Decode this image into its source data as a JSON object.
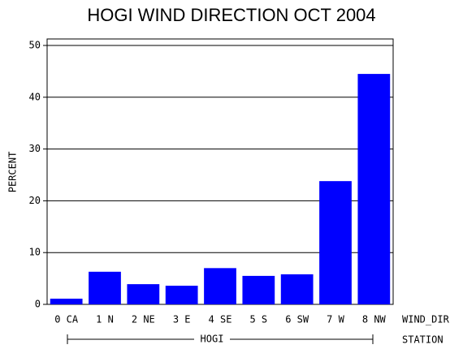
{
  "chart_data": {
    "type": "bar",
    "title": "HOGI WIND DIRECTION OCT 2004",
    "y_label": "PERCENT",
    "x_label": "WIND_DIR",
    "group_label": "STATION",
    "group": "HOGI",
    "categories": [
      "0 CA",
      "1 N",
      "2 NE",
      "3 E",
      "4 SE",
      "5 S",
      "6 SW",
      "7 W",
      "8 NW"
    ],
    "values": [
      1.1,
      6.3,
      3.9,
      3.6,
      7.0,
      5.5,
      5.8,
      23.8,
      44.5
    ],
    "color": "#0000ff",
    "ylim": [
      0,
      51
    ],
    "yticks": [
      0,
      10,
      20,
      30,
      40,
      50
    ],
    "grid": true
  }
}
